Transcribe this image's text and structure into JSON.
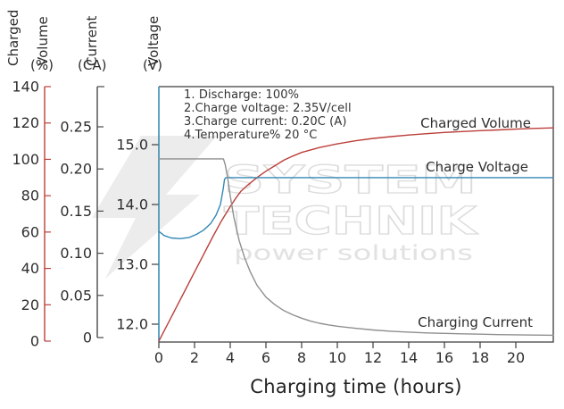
{
  "colors": {
    "volume_red": "#bb3f3a",
    "voltage_blue": "#2f84ad",
    "current_gray": "#8f8f8f",
    "axis_dark": "#3c3c3c",
    "text_dark": "#2e2e2e",
    "watermark_gray": "#e2e2e2"
  },
  "axis_headers": {
    "volume_word1": "Charged",
    "volume_word2": "Volume",
    "volume_unit": "(%)",
    "current_word": "Current",
    "current_unit": "(CA)",
    "voltage_word": "Voltage",
    "voltage_unit": "(V)"
  },
  "conditions": {
    "line1": "1. Discharge: 100%",
    "line2": "2.Charge voltage: 2.35V/cell",
    "line3": "3.Charge current: 0.20C (A)",
    "line4": "4.Temperature% 20 °C"
  },
  "curve_labels": {
    "volume": "Charged Volume",
    "voltage": "Charge Voltage",
    "current": "Charging Current"
  },
  "x_axis_title": "Charging time (hours)",
  "watermark": {
    "line1": "SYSTEM",
    "line2": "TECHNIK",
    "line3": "power solutions"
  },
  "chart_data": {
    "type": "line",
    "title": "",
    "xlabel": "Charging time (hours)",
    "x_range": [
      0,
      22.1
    ],
    "x_ticks": [
      0,
      2,
      4,
      6,
      8,
      10,
      12,
      14,
      16,
      18,
      20
    ],
    "x_tick_labels": [
      "0",
      "2",
      "4",
      "6",
      "8",
      "10",
      "12",
      "14",
      "16",
      "18",
      "20"
    ],
    "grid": false,
    "legend_position": "labels-inline-right",
    "y_axes": [
      {
        "id": "volume",
        "label": "Charged Volume (%)",
        "range": [
          0,
          140
        ],
        "ticks": [
          0,
          20,
          40,
          60,
          80,
          100,
          120,
          140
        ],
        "tick_labels": [
          "0",
          "20",
          "40",
          "60",
          "80",
          "100",
          "120",
          "140"
        ]
      },
      {
        "id": "current",
        "label": "Current (CA)",
        "range": [
          0,
          0.3
        ],
        "ticks": [
          0,
          0.05,
          0.1,
          0.15,
          0.2,
          0.25
        ],
        "tick_labels": [
          "0",
          "0.05",
          "0.10",
          "0.15",
          "0.20",
          "0.25"
        ]
      },
      {
        "id": "voltage",
        "label": "Voltage (V)",
        "range": [
          11.7,
          16.0
        ],
        "ticks": [
          12,
          13,
          14,
          15
        ],
        "tick_labels": [
          "12.0",
          "13.0",
          "14.0",
          "15.0"
        ]
      }
    ],
    "series": [
      {
        "id": "charged-volume",
        "name": "Charged Volume",
        "axis": "volume",
        "color": "#bb3f3a",
        "points": [
          [
            0,
            0
          ],
          [
            0.5,
            9.5
          ],
          [
            1,
            19
          ],
          [
            1.5,
            28.5
          ],
          [
            2,
            38
          ],
          [
            2.5,
            47.5
          ],
          [
            3,
            57
          ],
          [
            3.5,
            66
          ],
          [
            4,
            74
          ],
          [
            4.3,
            78.5
          ],
          [
            4.6,
            82.5
          ],
          [
            5,
            86
          ],
          [
            5.5,
            90
          ],
          [
            6,
            93.5
          ],
          [
            6.5,
            96.5
          ],
          [
            7,
            99.5
          ],
          [
            7.5,
            101.8
          ],
          [
            8,
            103.8
          ],
          [
            9,
            106.5
          ],
          [
            10,
            108.5
          ],
          [
            11,
            110.2
          ],
          [
            12,
            111.5
          ],
          [
            13,
            112.5
          ],
          [
            14,
            113.4
          ],
          [
            15,
            114.1
          ],
          [
            16,
            114.8
          ],
          [
            17,
            115.3
          ],
          [
            18,
            115.8
          ],
          [
            19,
            116.2
          ],
          [
            20,
            116.6
          ],
          [
            21,
            117
          ],
          [
            22.1,
            117.3
          ]
        ]
      },
      {
        "id": "charge-voltage",
        "name": "Charge Voltage",
        "axis": "voltage",
        "color": "#3287b5",
        "points": [
          [
            0,
            13.55
          ],
          [
            0.3,
            13.48
          ],
          [
            0.7,
            13.44
          ],
          [
            1.2,
            13.43
          ],
          [
            1.7,
            13.45
          ],
          [
            2.1,
            13.5
          ],
          [
            2.5,
            13.57
          ],
          [
            2.9,
            13.68
          ],
          [
            3.2,
            13.82
          ],
          [
            3.45,
            14.0
          ],
          [
            3.6,
            14.25
          ],
          [
            3.68,
            14.42
          ],
          [
            3.75,
            14.45
          ],
          [
            4.2,
            14.45
          ],
          [
            22.1,
            14.45
          ]
        ]
      },
      {
        "id": "charging-current",
        "name": "Charging Current",
        "axis": "current",
        "color": "#8f8f8f",
        "points": [
          [
            0,
            0.212
          ],
          [
            3.62,
            0.212
          ],
          [
            3.72,
            0.205
          ],
          [
            3.85,
            0.19
          ],
          [
            4,
            0.168
          ],
          [
            4.2,
            0.143
          ],
          [
            4.5,
            0.115
          ],
          [
            4.8,
            0.095
          ],
          [
            5.1,
            0.079
          ],
          [
            5.5,
            0.062
          ],
          [
            6,
            0.048
          ],
          [
            6.5,
            0.039
          ],
          [
            7,
            0.032
          ],
          [
            7.5,
            0.027
          ],
          [
            8,
            0.023
          ],
          [
            8.5,
            0.0195
          ],
          [
            9,
            0.017
          ],
          [
            9.5,
            0.015
          ],
          [
            10,
            0.0135
          ],
          [
            11,
            0.011
          ],
          [
            12,
            0.009
          ],
          [
            13,
            0.0075
          ],
          [
            14,
            0.0065
          ],
          [
            15,
            0.0055
          ],
          [
            16,
            0.005
          ],
          [
            17,
            0.0045
          ],
          [
            18,
            0.004
          ],
          [
            19,
            0.0035
          ],
          [
            20,
            0.0033
          ],
          [
            21,
            0.003
          ],
          [
            22.1,
            0.0028
          ]
        ]
      }
    ]
  }
}
